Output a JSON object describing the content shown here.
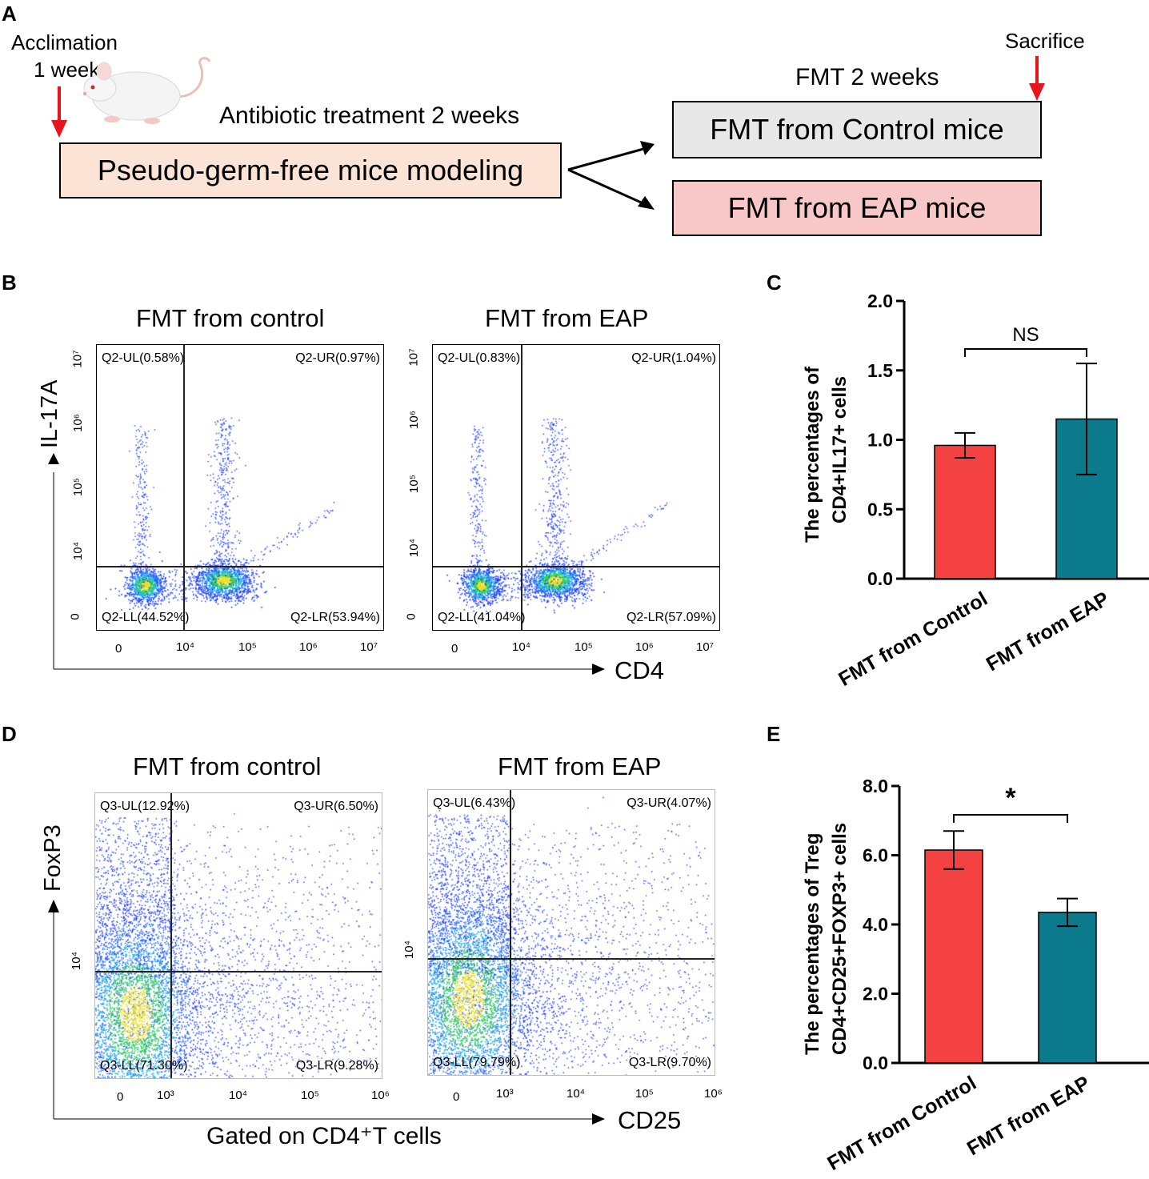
{
  "panelA": {
    "letter": "A",
    "acclimation_line1": "Acclimation",
    "acclimation_line2": "1 week",
    "antibiotic_label": "Antibiotic treatment 2 weeks",
    "modeling_box": "Pseudo-germ-free mice modeling",
    "fmt_duration": "FMT 2 weeks",
    "sacrifice": "Sacrifice",
    "control_box": "FMT from Control mice",
    "eap_box": "FMT from EAP mice",
    "colors": {
      "modeling_fill": "#fbe4d5",
      "control_fill": "#e8e8e8",
      "eap_fill": "#f8c8c8",
      "arrow_red": "#e8141c"
    }
  },
  "panelB": {
    "letter": "B",
    "y_axis": "IL-17A",
    "x_axis": "CD4",
    "plots": [
      {
        "title": "FMT from control",
        "UL": "Q2-UL(0.58%)",
        "UR": "Q2-UR(0.97%)",
        "LL": "Q2-LL(44.52%)",
        "LR": "Q2-LR(53.94%)"
      },
      {
        "title": "FMT from EAP",
        "UL": "Q2-UL(0.83%)",
        "UR": "Q2-UR(1.04%)",
        "LL": "Q2-LL(41.04%)",
        "LR": "Q2-LR(57.09%)"
      }
    ],
    "x_ticks": [
      "0",
      "10⁴",
      "10⁵",
      "10⁶",
      "10⁷"
    ],
    "y_ticks": [
      "0",
      "10⁴",
      "10⁵",
      "10⁶",
      "10⁷"
    ]
  },
  "panelC": {
    "letter": "C",
    "ylabel_line1": "The percentages of",
    "ylabel_line2": "CD4+IL17+ cells",
    "significance": "NS",
    "y_ticks": [
      "0.0",
      "0.5",
      "1.0",
      "1.5",
      "2.0"
    ]
  },
  "panelD": {
    "letter": "D",
    "y_axis": "FoxP3",
    "x_axis": "CD25",
    "gate_label": "Gated on CD4⁺T cells",
    "plots": [
      {
        "title": "FMT from control",
        "UL": "Q3-UL(12.92%)",
        "UR": "Q3-UR(6.50%)",
        "LL": "Q3-LL(71.30%)",
        "LR": "Q3-LR(9.28%)"
      },
      {
        "title": "FMT from EAP",
        "UL": "Q3-UL(6.43%)",
        "UR": "Q3-UR(4.07%)",
        "LL": "Q3-LL(79.79%)",
        "LR": "Q3-LR(9.70%)"
      }
    ],
    "x_ticks": [
      "0",
      "10³",
      "10⁴",
      "10⁵",
      "10⁶"
    ],
    "y_ticks": [
      "10⁴"
    ]
  },
  "panelE": {
    "letter": "E",
    "ylabel_line1": "The percentages of Treg",
    "ylabel_line2": "CD4+CD25+FOXP3+ cells",
    "significance": "*",
    "y_ticks": [
      "0.0",
      "2.0",
      "4.0",
      "6.0",
      "8.0"
    ]
  },
  "chart_data": [
    {
      "type": "bar",
      "title": "",
      "ylabel": "The percentages of CD4+IL17+ cells",
      "categories": [
        "FMT from Control",
        "FMT from EAP"
      ],
      "values": [
        0.96,
        1.15
      ],
      "errors": [
        0.09,
        0.4
      ],
      "ylim": [
        0,
        2.0
      ],
      "colors": [
        "#f44242",
        "#0a7a8c"
      ]
    },
    {
      "type": "bar",
      "title": "",
      "ylabel": "The percentages of Treg CD4+CD25+FOXP3+ cells",
      "categories": [
        "FMT from Control",
        "FMT from EAP"
      ],
      "values": [
        6.15,
        4.35
      ],
      "errors": [
        0.55,
        0.4
      ],
      "ylim": [
        0,
        8.0
      ],
      "colors": [
        "#f44242",
        "#0a7a8c"
      ]
    }
  ]
}
